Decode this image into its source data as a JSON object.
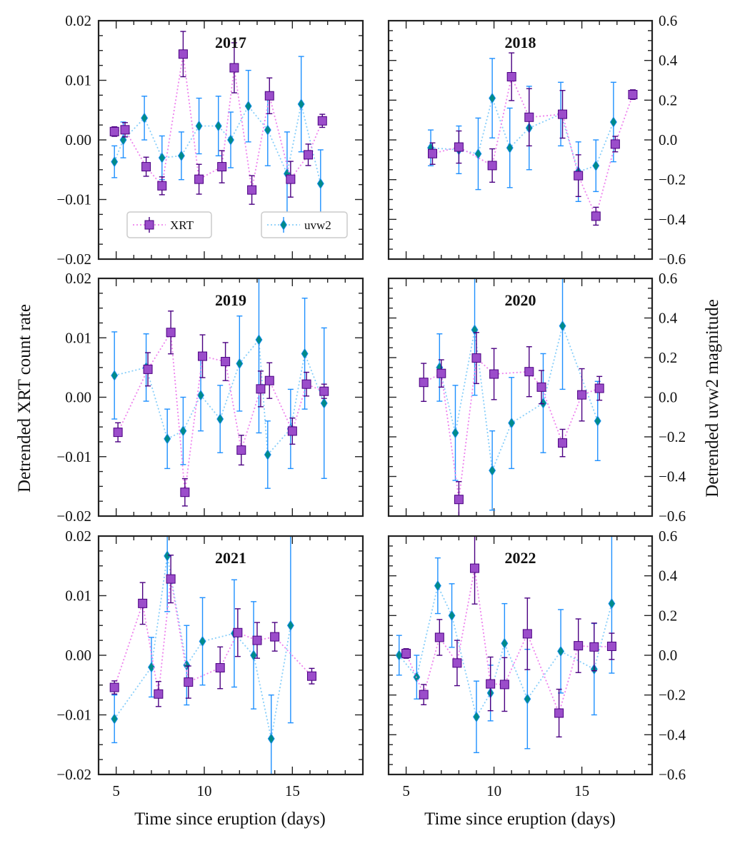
{
  "colors": {
    "xrt_line": "#ee82ee",
    "xrt_marker": "#9b4dca",
    "xrt_edge": "#4b0082",
    "uvw2_line": "#87cefa",
    "uvw2_marker": "#008b8b",
    "uvw2_edge": "#1e90ff"
  },
  "chart_data": {
    "type": "scatter",
    "layout": "3x2 grid of panels with shared x axis; left axis XRT count rate, right axis uvw2 magnitude",
    "xlabel": "Time since eruption (days)",
    "ylabel_left": "Detrended XRT count rate",
    "ylabel_right": "Detrended uvw2 magnitude",
    "xlim": [
      4,
      19
    ],
    "xticks": [
      5,
      10,
      15
    ],
    "ylim_left": [
      -0.02,
      0.02
    ],
    "yticks_left": [
      -0.02,
      -0.01,
      0.0,
      0.01,
      0.02
    ],
    "ytick_labels_left": [
      "−0.02",
      "−0.01",
      "0.00",
      "0.01",
      "0.02"
    ],
    "ylim_right": [
      -0.6,
      0.6
    ],
    "yticks_right": [
      -0.6,
      -0.4,
      -0.2,
      0.0,
      0.2,
      0.4,
      0.6
    ],
    "ytick_labels_right": [
      "−0.6",
      "−0.4",
      "−0.2",
      "0.0",
      "0.2",
      "0.4",
      "0.6"
    ],
    "legend": {
      "placement": "bottom of first panel",
      "entries": [
        "XRT",
        "uvw2"
      ]
    },
    "panels": [
      {
        "title": "2017",
        "xrt": [
          [
            4.9,
            0.0014,
            0.0008
          ],
          [
            5.5,
            0.0017,
            0.0012
          ],
          [
            6.7,
            -0.0045,
            0.0016
          ],
          [
            7.6,
            -0.0077,
            0.0015
          ],
          [
            8.8,
            0.0144,
            0.0038
          ],
          [
            9.7,
            -0.0066,
            0.0025
          ],
          [
            11.0,
            -0.0045,
            0.0027
          ],
          [
            11.7,
            0.0121,
            0.0042
          ],
          [
            12.7,
            -0.0084,
            0.0024
          ],
          [
            13.7,
            0.0074,
            0.003
          ],
          [
            14.9,
            -0.0066,
            0.003
          ],
          [
            15.9,
            -0.0025,
            0.0018
          ],
          [
            16.7,
            0.0032,
            0.0011
          ]
        ],
        "uvw2": [
          [
            4.9,
            -0.11,
            0.08
          ],
          [
            5.4,
            0.0,
            0.09
          ],
          [
            6.6,
            0.11,
            0.11
          ],
          [
            7.6,
            -0.09,
            0.11
          ],
          [
            8.7,
            -0.08,
            0.12
          ],
          [
            9.7,
            0.07,
            0.14
          ],
          [
            10.8,
            0.07,
            0.15
          ],
          [
            11.5,
            0.0,
            0.14
          ],
          [
            12.5,
            0.17,
            0.18
          ],
          [
            13.6,
            0.05,
            0.18
          ],
          [
            14.7,
            -0.17,
            0.21
          ],
          [
            15.5,
            0.18,
            0.24
          ],
          [
            16.6,
            -0.22,
            0.17
          ]
        ]
      },
      {
        "title": "2018",
        "xrt": [
          [
            6.5,
            -0.0023,
            0.0018
          ],
          [
            8.0,
            -0.0012,
            0.0027
          ],
          [
            9.9,
            -0.0043,
            0.0028
          ],
          [
            11.0,
            0.0106,
            0.004
          ],
          [
            12.0,
            0.0038,
            0.0048
          ],
          [
            13.9,
            0.0043,
            0.004
          ],
          [
            14.8,
            -0.006,
            0.0035
          ],
          [
            15.8,
            -0.0128,
            0.0015
          ],
          [
            16.9,
            -0.0007,
            0.0013
          ],
          [
            17.9,
            0.0076,
            0.0008
          ]
        ],
        "uvw2": [
          [
            6.4,
            -0.04,
            0.09
          ],
          [
            8.0,
            -0.05,
            0.12
          ],
          [
            9.1,
            -0.07,
            0.18
          ],
          [
            9.9,
            0.21,
            0.2
          ],
          [
            10.9,
            -0.04,
            0.2
          ],
          [
            12.0,
            0.06,
            0.21
          ],
          [
            13.8,
            0.13,
            0.16
          ],
          [
            14.8,
            -0.16,
            0.15
          ],
          [
            15.8,
            -0.13,
            0.13
          ],
          [
            16.8,
            0.09,
            0.2
          ]
        ]
      },
      {
        "title": "2019",
        "xrt": [
          [
            5.1,
            -0.0059,
            0.0016
          ],
          [
            6.8,
            0.0047,
            0.0028
          ],
          [
            8.1,
            0.0109,
            0.0036
          ],
          [
            8.9,
            -0.016,
            0.0023
          ],
          [
            9.9,
            0.0069,
            0.0036
          ],
          [
            11.2,
            0.006,
            0.0032
          ],
          [
            12.1,
            -0.0089,
            0.0025
          ],
          [
            13.2,
            0.0014,
            0.003
          ],
          [
            13.7,
            0.0028,
            0.003
          ],
          [
            15.0,
            -0.0057,
            0.0022
          ],
          [
            15.8,
            0.0022,
            0.002
          ],
          [
            16.8,
            0.001,
            0.0012
          ]
        ],
        "uvw2": [
          [
            4.9,
            0.11,
            0.22
          ],
          [
            6.7,
            0.15,
            0.17
          ],
          [
            7.9,
            -0.21,
            0.15
          ],
          [
            8.8,
            -0.17,
            0.17
          ],
          [
            9.8,
            0.01,
            0.18
          ],
          [
            10.9,
            -0.11,
            0.17
          ],
          [
            12.0,
            0.17,
            0.24
          ],
          [
            13.1,
            0.29,
            0.47
          ],
          [
            13.6,
            -0.29,
            0.17
          ],
          [
            14.9,
            -0.16,
            0.2
          ],
          [
            15.7,
            0.22,
            0.28
          ],
          [
            16.8,
            -0.03,
            0.38
          ]
        ]
      },
      {
        "title": "2020",
        "xrt": [
          [
            6.0,
            0.0025,
            0.0032
          ],
          [
            7.0,
            0.004,
            0.0023
          ],
          [
            8.0,
            -0.0172,
            0.003
          ],
          [
            9.0,
            0.0066,
            0.0043
          ],
          [
            10.0,
            0.0039,
            0.0043
          ],
          [
            12.0,
            0.0043,
            0.0042
          ],
          [
            12.7,
            0.0017,
            0.0028
          ],
          [
            13.9,
            -0.0077,
            0.0023
          ],
          [
            15.0,
            0.0004,
            0.0044
          ],
          [
            16.0,
            0.0015,
            0.002
          ]
        ],
        "uvw2": [
          [
            6.9,
            0.15,
            0.17
          ],
          [
            7.8,
            -0.18,
            0.24
          ],
          [
            8.9,
            0.34,
            0.33
          ],
          [
            9.9,
            -0.37,
            0.2
          ],
          [
            11.0,
            -0.13,
            0.23
          ],
          [
            12.8,
            -0.03,
            0.25
          ],
          [
            13.9,
            0.36,
            0.32
          ],
          [
            15.9,
            -0.12,
            0.2
          ]
        ]
      },
      {
        "title": "2021",
        "xrt": [
          [
            4.9,
            -0.0054,
            0.0011
          ],
          [
            6.5,
            0.0087,
            0.0035
          ],
          [
            7.4,
            -0.0065,
            0.0021
          ],
          [
            8.1,
            0.0128,
            0.004
          ],
          [
            9.1,
            -0.0045,
            0.0027
          ],
          [
            10.9,
            -0.0021,
            0.0035
          ],
          [
            11.9,
            0.0038,
            0.004
          ],
          [
            13.0,
            0.0025,
            0.003
          ],
          [
            14.0,
            0.0031,
            0.0024
          ],
          [
            16.1,
            -0.0035,
            0.0013
          ]
        ],
        "uvw2": [
          [
            4.9,
            -0.32,
            0.12
          ],
          [
            7.0,
            -0.06,
            0.15
          ],
          [
            7.9,
            0.5,
            0.28
          ],
          [
            9.0,
            -0.05,
            0.2
          ],
          [
            9.9,
            0.07,
            0.22
          ],
          [
            11.7,
            0.11,
            0.27
          ],
          [
            12.8,
            0.0,
            0.27
          ],
          [
            13.8,
            -0.42,
            0.22
          ],
          [
            14.9,
            0.15,
            0.49
          ]
        ]
      },
      {
        "title": "2022",
        "xrt": [
          [
            5.0,
            0.0003,
            0.0008
          ],
          [
            6.0,
            -0.0066,
            0.0017
          ],
          [
            6.9,
            0.003,
            0.003
          ],
          [
            7.9,
            -0.0013,
            0.0038
          ],
          [
            8.9,
            0.0146,
            0.006
          ],
          [
            9.8,
            -0.0048,
            0.0045
          ],
          [
            10.6,
            -0.0049,
            0.0045
          ],
          [
            11.9,
            0.0036,
            0.006
          ],
          [
            13.7,
            -0.0097,
            0.004
          ],
          [
            14.8,
            0.0016,
            0.0045
          ],
          [
            15.7,
            0.0014,
            0.004
          ],
          [
            16.7,
            0.0015,
            0.0022
          ]
        ],
        "uvw2": [
          [
            4.6,
            0.0,
            0.1
          ],
          [
            5.6,
            -0.11,
            0.11
          ],
          [
            6.8,
            0.35,
            0.14
          ],
          [
            7.6,
            0.2,
            0.16
          ],
          [
            9.0,
            -0.31,
            0.18
          ],
          [
            9.8,
            -0.19,
            0.14
          ],
          [
            10.6,
            0.06,
            0.2
          ],
          [
            11.9,
            -0.22,
            0.25
          ],
          [
            13.8,
            0.02,
            0.21
          ],
          [
            15.7,
            -0.07,
            0.23
          ],
          [
            16.7,
            0.26,
            0.35
          ]
        ]
      }
    ]
  }
}
